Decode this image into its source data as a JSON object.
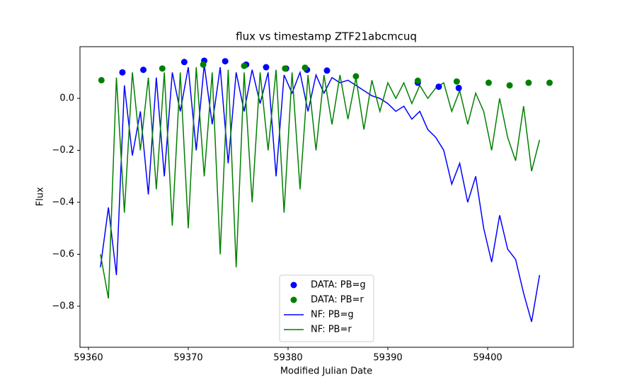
{
  "chart_data": {
    "type": "line",
    "title": "flux vs timestamp ZTF21abcmcuq",
    "x_label": "Modified Julian Date",
    "y_label": "Flux",
    "xlim": [
      59359.15,
      59408.58
    ],
    "ylim": [
      -0.958,
      0.199
    ],
    "xticks": [
      59360,
      59370,
      59380,
      59390,
      59400
    ],
    "yticks": [
      {
        "value": -0.8,
        "label": "−0.8"
      },
      {
        "value": -0.6,
        "label": "−0.6"
      },
      {
        "value": -0.4,
        "label": "−0.4"
      },
      {
        "value": -0.2,
        "label": "−0.2"
      },
      {
        "value": 0,
        "label": "0.0"
      }
    ],
    "legend": "lower center",
    "series": [
      {
        "name": "DATA: PB=g",
        "type": "scatter",
        "color": "#0000ff",
        "x": [
          59363.4,
          59365.5,
          59369.6,
          59371.6,
          59373.7,
          59375.8,
          59377.8,
          59379.8,
          59381.9,
          59383.9,
          59393.0,
          59395.1,
          59397.1
        ],
        "values": [
          0.1,
          0.11,
          0.14,
          0.145,
          0.143,
          0.13,
          0.12,
          0.115,
          0.11,
          0.107,
          0.06,
          0.045,
          0.04
        ]
      },
      {
        "name": "DATA: PB=r",
        "type": "scatter",
        "color": "#008000",
        "x": [
          59361.3,
          59367.4,
          59371.5,
          59375.6,
          59379.7,
          59381.7,
          59386.8,
          59393.0,
          59396.9,
          59400.1,
          59402.2,
          59404.1,
          59406.2
        ],
        "values": [
          0.07,
          0.115,
          0.13,
          0.125,
          0.115,
          0.118,
          0.085,
          0.068,
          0.065,
          0.06,
          0.05,
          0.06,
          0.06
        ]
      },
      {
        "name": "NF: PB=g",
        "type": "line",
        "color": "#0000ff",
        "x": [
          59361.2,
          59362.0,
          59362.8,
          59363.6,
          59364.4,
          59365.2,
          59366.0,
          59366.8,
          59367.6,
          59368.4,
          59369.2,
          59370.0,
          59370.8,
          59371.6,
          59372.4,
          59373.2,
          59374.0,
          59374.8,
          59375.6,
          59376.4,
          59377.2,
          59378.0,
          59378.8,
          59379.6,
          59380.4,
          59381.2,
          59382.0,
          59382.8,
          59383.6,
          59384.4,
          59385.2,
          59386.0,
          59386.8,
          59387.6,
          59388.4,
          59389.2,
          59390.0,
          59390.8,
          59391.6,
          59392.4,
          59393.2,
          59394.0,
          59394.8,
          59395.6,
          59396.4,
          59397.2,
          59398.0,
          59398.8,
          59399.6,
          59400.4,
          59401.2,
          59402.0,
          59402.8,
          59403.6,
          59404.4,
          59405.2
        ],
        "values": [
          -0.65,
          -0.42,
          -0.68,
          0.05,
          -0.22,
          -0.05,
          -0.37,
          0.08,
          -0.3,
          0.1,
          -0.05,
          0.12,
          -0.2,
          0.13,
          -0.1,
          0.12,
          -0.25,
          0.1,
          -0.05,
          0.11,
          -0.02,
          0.1,
          -0.3,
          0.09,
          0.02,
          0.1,
          -0.05,
          0.09,
          0.02,
          0.08,
          0.06,
          0.07,
          0.05,
          0.03,
          0.01,
          0.0,
          -0.02,
          -0.05,
          -0.03,
          -0.08,
          -0.05,
          -0.12,
          -0.15,
          -0.2,
          -0.33,
          -0.25,
          -0.4,
          -0.3,
          -0.5,
          -0.63,
          -0.45,
          -0.58,
          -0.62,
          -0.75,
          -0.86,
          -0.68
        ]
      },
      {
        "name": "NF: PB=r",
        "type": "line",
        "color": "#008000",
        "x": [
          59361.2,
          59362.0,
          59362.8,
          59363.6,
          59364.4,
          59365.2,
          59366.0,
          59366.8,
          59367.6,
          59368.4,
          59369.2,
          59370.0,
          59370.8,
          59371.6,
          59372.4,
          59373.2,
          59374.0,
          59374.8,
          59375.6,
          59376.4,
          59377.2,
          59378.0,
          59378.8,
          59379.6,
          59380.4,
          59381.2,
          59382.0,
          59382.8,
          59383.6,
          59384.4,
          59385.2,
          59386.0,
          59386.8,
          59387.6,
          59388.4,
          59389.2,
          59390.0,
          59390.8,
          59391.6,
          59392.4,
          59393.2,
          59394.0,
          59394.8,
          59395.6,
          59396.4,
          59397.2,
          59398.0,
          59398.8,
          59399.6,
          59400.4,
          59401.2,
          59402.0,
          59402.8,
          59403.6,
          59404.4,
          59405.2
        ],
        "values": [
          -0.6,
          -0.77,
          0.08,
          -0.44,
          0.1,
          -0.2,
          0.08,
          -0.35,
          0.1,
          -0.49,
          0.1,
          -0.5,
          0.12,
          -0.3,
          0.1,
          -0.6,
          0.11,
          -0.65,
          0.1,
          -0.4,
          0.1,
          -0.2,
          0.11,
          -0.44,
          0.1,
          -0.35,
          0.09,
          -0.2,
          0.09,
          -0.1,
          0.09,
          -0.08,
          0.08,
          -0.12,
          0.07,
          -0.05,
          0.06,
          0.0,
          0.06,
          -0.02,
          0.05,
          0.0,
          0.04,
          0.06,
          -0.05,
          0.03,
          -0.1,
          0.02,
          -0.05,
          -0.2,
          0.0,
          -0.15,
          -0.24,
          -0.03,
          -0.28,
          -0.16
        ]
      }
    ]
  }
}
